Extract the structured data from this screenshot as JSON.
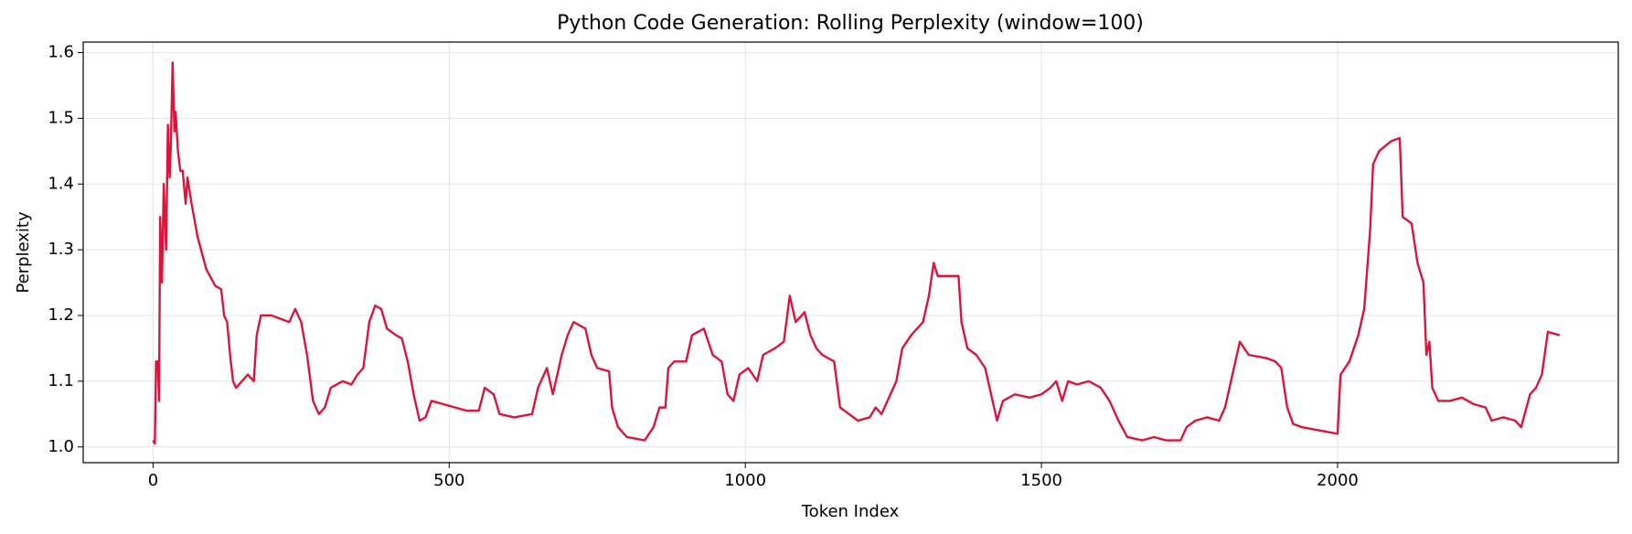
{
  "chart_data": {
    "type": "line",
    "title": "Python Code Generation: Rolling Perplexity (window=100)",
    "xlabel": "Token Index",
    "ylabel": "Perplexity",
    "color": "#dc143c",
    "grid": true,
    "xlim": [
      -118,
      2474
    ],
    "ylim": [
      0.976,
      1.616
    ],
    "xticks": [
      0,
      500,
      1000,
      1500,
      2000
    ],
    "yticks": [
      {
        "value": 1,
        "label": "1.0"
      },
      1.1,
      1.2,
      1.3,
      1.4,
      1.5,
      1.6
    ],
    "x": [
      0,
      3,
      5,
      8,
      10,
      12,
      15,
      18,
      22,
      25,
      28,
      30,
      33,
      36,
      38,
      42,
      46,
      50,
      55,
      58,
      65,
      75,
      90,
      105,
      115,
      120,
      125,
      130,
      135,
      140,
      150,
      160,
      170,
      175,
      182,
      200,
      215,
      230,
      240,
      250,
      260,
      270,
      280,
      290,
      300,
      320,
      335,
      345,
      355,
      365,
      375,
      385,
      395,
      410,
      420,
      430,
      440,
      450,
      460,
      470,
      490,
      510,
      530,
      550,
      560,
      575,
      585,
      610,
      640,
      650,
      665,
      675,
      690,
      700,
      710,
      730,
      740,
      750,
      770,
      775,
      785,
      800,
      830,
      845,
      855,
      865,
      870,
      880,
      900,
      910,
      930,
      945,
      960,
      970,
      980,
      990,
      1005,
      1020,
      1030,
      1050,
      1065,
      1075,
      1085,
      1100,
      1110,
      1120,
      1130,
      1150,
      1160,
      1175,
      1190,
      1210,
      1220,
      1230,
      1245,
      1255,
      1265,
      1280,
      1300,
      1310,
      1318,
      1325,
      1350,
      1360,
      1365,
      1375,
      1390,
      1405,
      1420,
      1425,
      1435,
      1455,
      1480,
      1500,
      1515,
      1525,
      1535,
      1545,
      1560,
      1580,
      1600,
      1615,
      1630,
      1645,
      1670,
      1690,
      1710,
      1735,
      1745,
      1760,
      1780,
      1800,
      1810,
      1820,
      1835,
      1850,
      1880,
      1895,
      1905,
      1915,
      1925,
      1940,
      1970,
      2000,
      2005,
      2020,
      2035,
      2045,
      2055,
      2060,
      2070,
      2090,
      2105,
      2110,
      2125,
      2135,
      2145,
      2150,
      2155,
      2160,
      2170,
      2190,
      2210,
      2230,
      2250,
      2260,
      2280,
      2300,
      2310,
      2325,
      2335,
      2345,
      2355,
      2375
    ],
    "values": [
      1.01,
      1.005,
      1.13,
      1.13,
      1.07,
      1.35,
      1.25,
      1.4,
      1.3,
      1.49,
      1.41,
      1.46,
      1.585,
      1.48,
      1.51,
      1.45,
      1.42,
      1.42,
      1.37,
      1.41,
      1.37,
      1.32,
      1.27,
      1.245,
      1.24,
      1.2,
      1.19,
      1.14,
      1.1,
      1.09,
      1.1,
      1.11,
      1.1,
      1.17,
      1.2,
      1.2,
      1.195,
      1.19,
      1.21,
      1.19,
      1.14,
      1.07,
      1.05,
      1.06,
      1.09,
      1.1,
      1.095,
      1.11,
      1.12,
      1.19,
      1.215,
      1.21,
      1.18,
      1.17,
      1.165,
      1.13,
      1.08,
      1.04,
      1.045,
      1.07,
      1.065,
      1.06,
      1.055,
      1.055,
      1.09,
      1.08,
      1.05,
      1.045,
      1.05,
      1.09,
      1.12,
      1.08,
      1.14,
      1.17,
      1.19,
      1.18,
      1.14,
      1.12,
      1.115,
      1.06,
      1.03,
      1.015,
      1.01,
      1.03,
      1.06,
      1.06,
      1.12,
      1.13,
      1.13,
      1.17,
      1.18,
      1.14,
      1.13,
      1.08,
      1.07,
      1.11,
      1.12,
      1.1,
      1.14,
      1.15,
      1.16,
      1.23,
      1.19,
      1.205,
      1.17,
      1.15,
      1.14,
      1.13,
      1.06,
      1.05,
      1.04,
      1.045,
      1.06,
      1.05,
      1.08,
      1.1,
      1.15,
      1.17,
      1.19,
      1.23,
      1.28,
      1.26,
      1.26,
      1.26,
      1.19,
      1.15,
      1.14,
      1.12,
      1.06,
      1.04,
      1.07,
      1.08,
      1.075,
      1.08,
      1.09,
      1.1,
      1.07,
      1.1,
      1.095,
      1.1,
      1.09,
      1.07,
      1.04,
      1.015,
      1.01,
      1.015,
      1.01,
      1.01,
      1.03,
      1.04,
      1.045,
      1.04,
      1.06,
      1.1,
      1.16,
      1.14,
      1.135,
      1.13,
      1.12,
      1.06,
      1.035,
      1.03,
      1.025,
      1.02,
      1.11,
      1.13,
      1.17,
      1.21,
      1.33,
      1.43,
      1.45,
      1.465,
      1.47,
      1.35,
      1.34,
      1.28,
      1.25,
      1.14,
      1.16,
      1.09,
      1.07,
      1.07,
      1.075,
      1.065,
      1.06,
      1.04,
      1.045,
      1.04,
      1.03,
      1.08,
      1.09,
      1.11,
      1.175,
      1.17
    ]
  }
}
